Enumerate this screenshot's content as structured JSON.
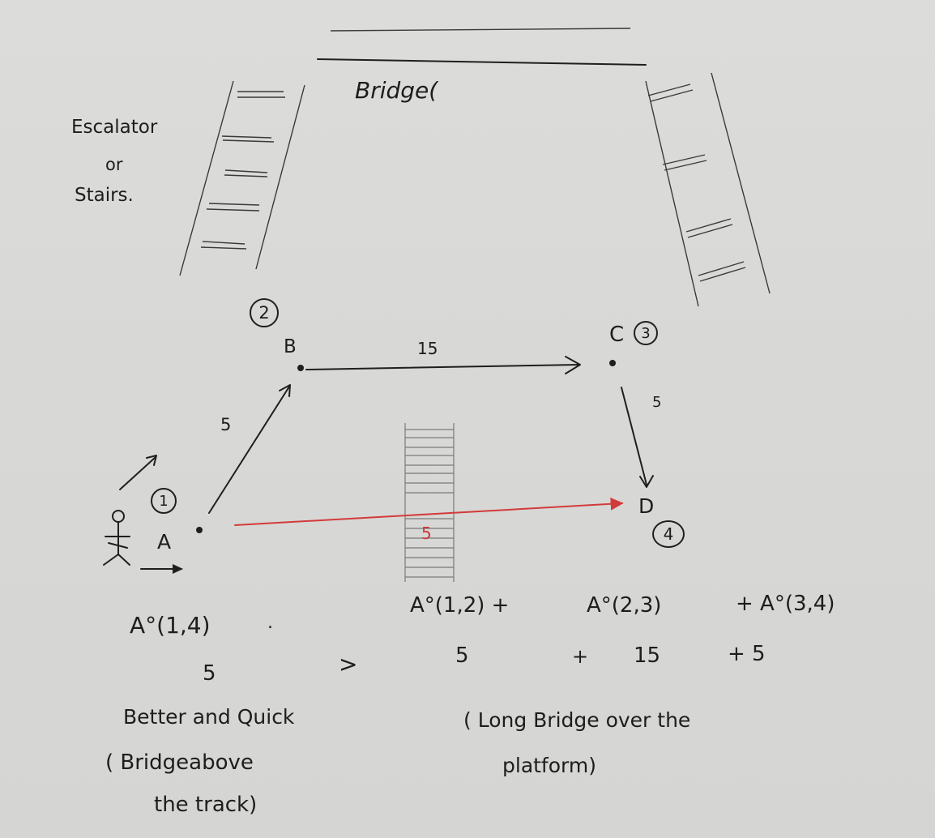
{
  "bridge_label": "Bridge(",
  "escalator": {
    "line1": "Escalator",
    "line2": "or",
    "line3": "Stairs."
  },
  "nodes": {
    "A": {
      "label": "A",
      "number": "1"
    },
    "B": {
      "label": "B",
      "number": "2"
    },
    "C": {
      "label": "C",
      "number": "3"
    },
    "D": {
      "label": "D",
      "number": "4"
    }
  },
  "edges": {
    "A_B": "5",
    "B_C": "15",
    "C_D": "5",
    "A_D": "5"
  },
  "equations": {
    "direct": "A°(1,4)",
    "direct_dot": ".",
    "direct_value": "5",
    "comparison": ">",
    "path_terms": [
      "A°(1,2) +",
      "A°(2,3)",
      "+ A°(3,4)"
    ],
    "path_values": [
      "5",
      "+",
      "15",
      "+ 5"
    ]
  },
  "notes": {
    "left_1": "Better and Quick",
    "left_2": "( Bridgeabove",
    "left_3": "the track)",
    "right_1": "( Long Bridge over the",
    "right_2": "platform)"
  },
  "colors": {
    "ink": "#1f1f1f",
    "red": "#d23b3b",
    "paper": "#d9d9d7"
  }
}
